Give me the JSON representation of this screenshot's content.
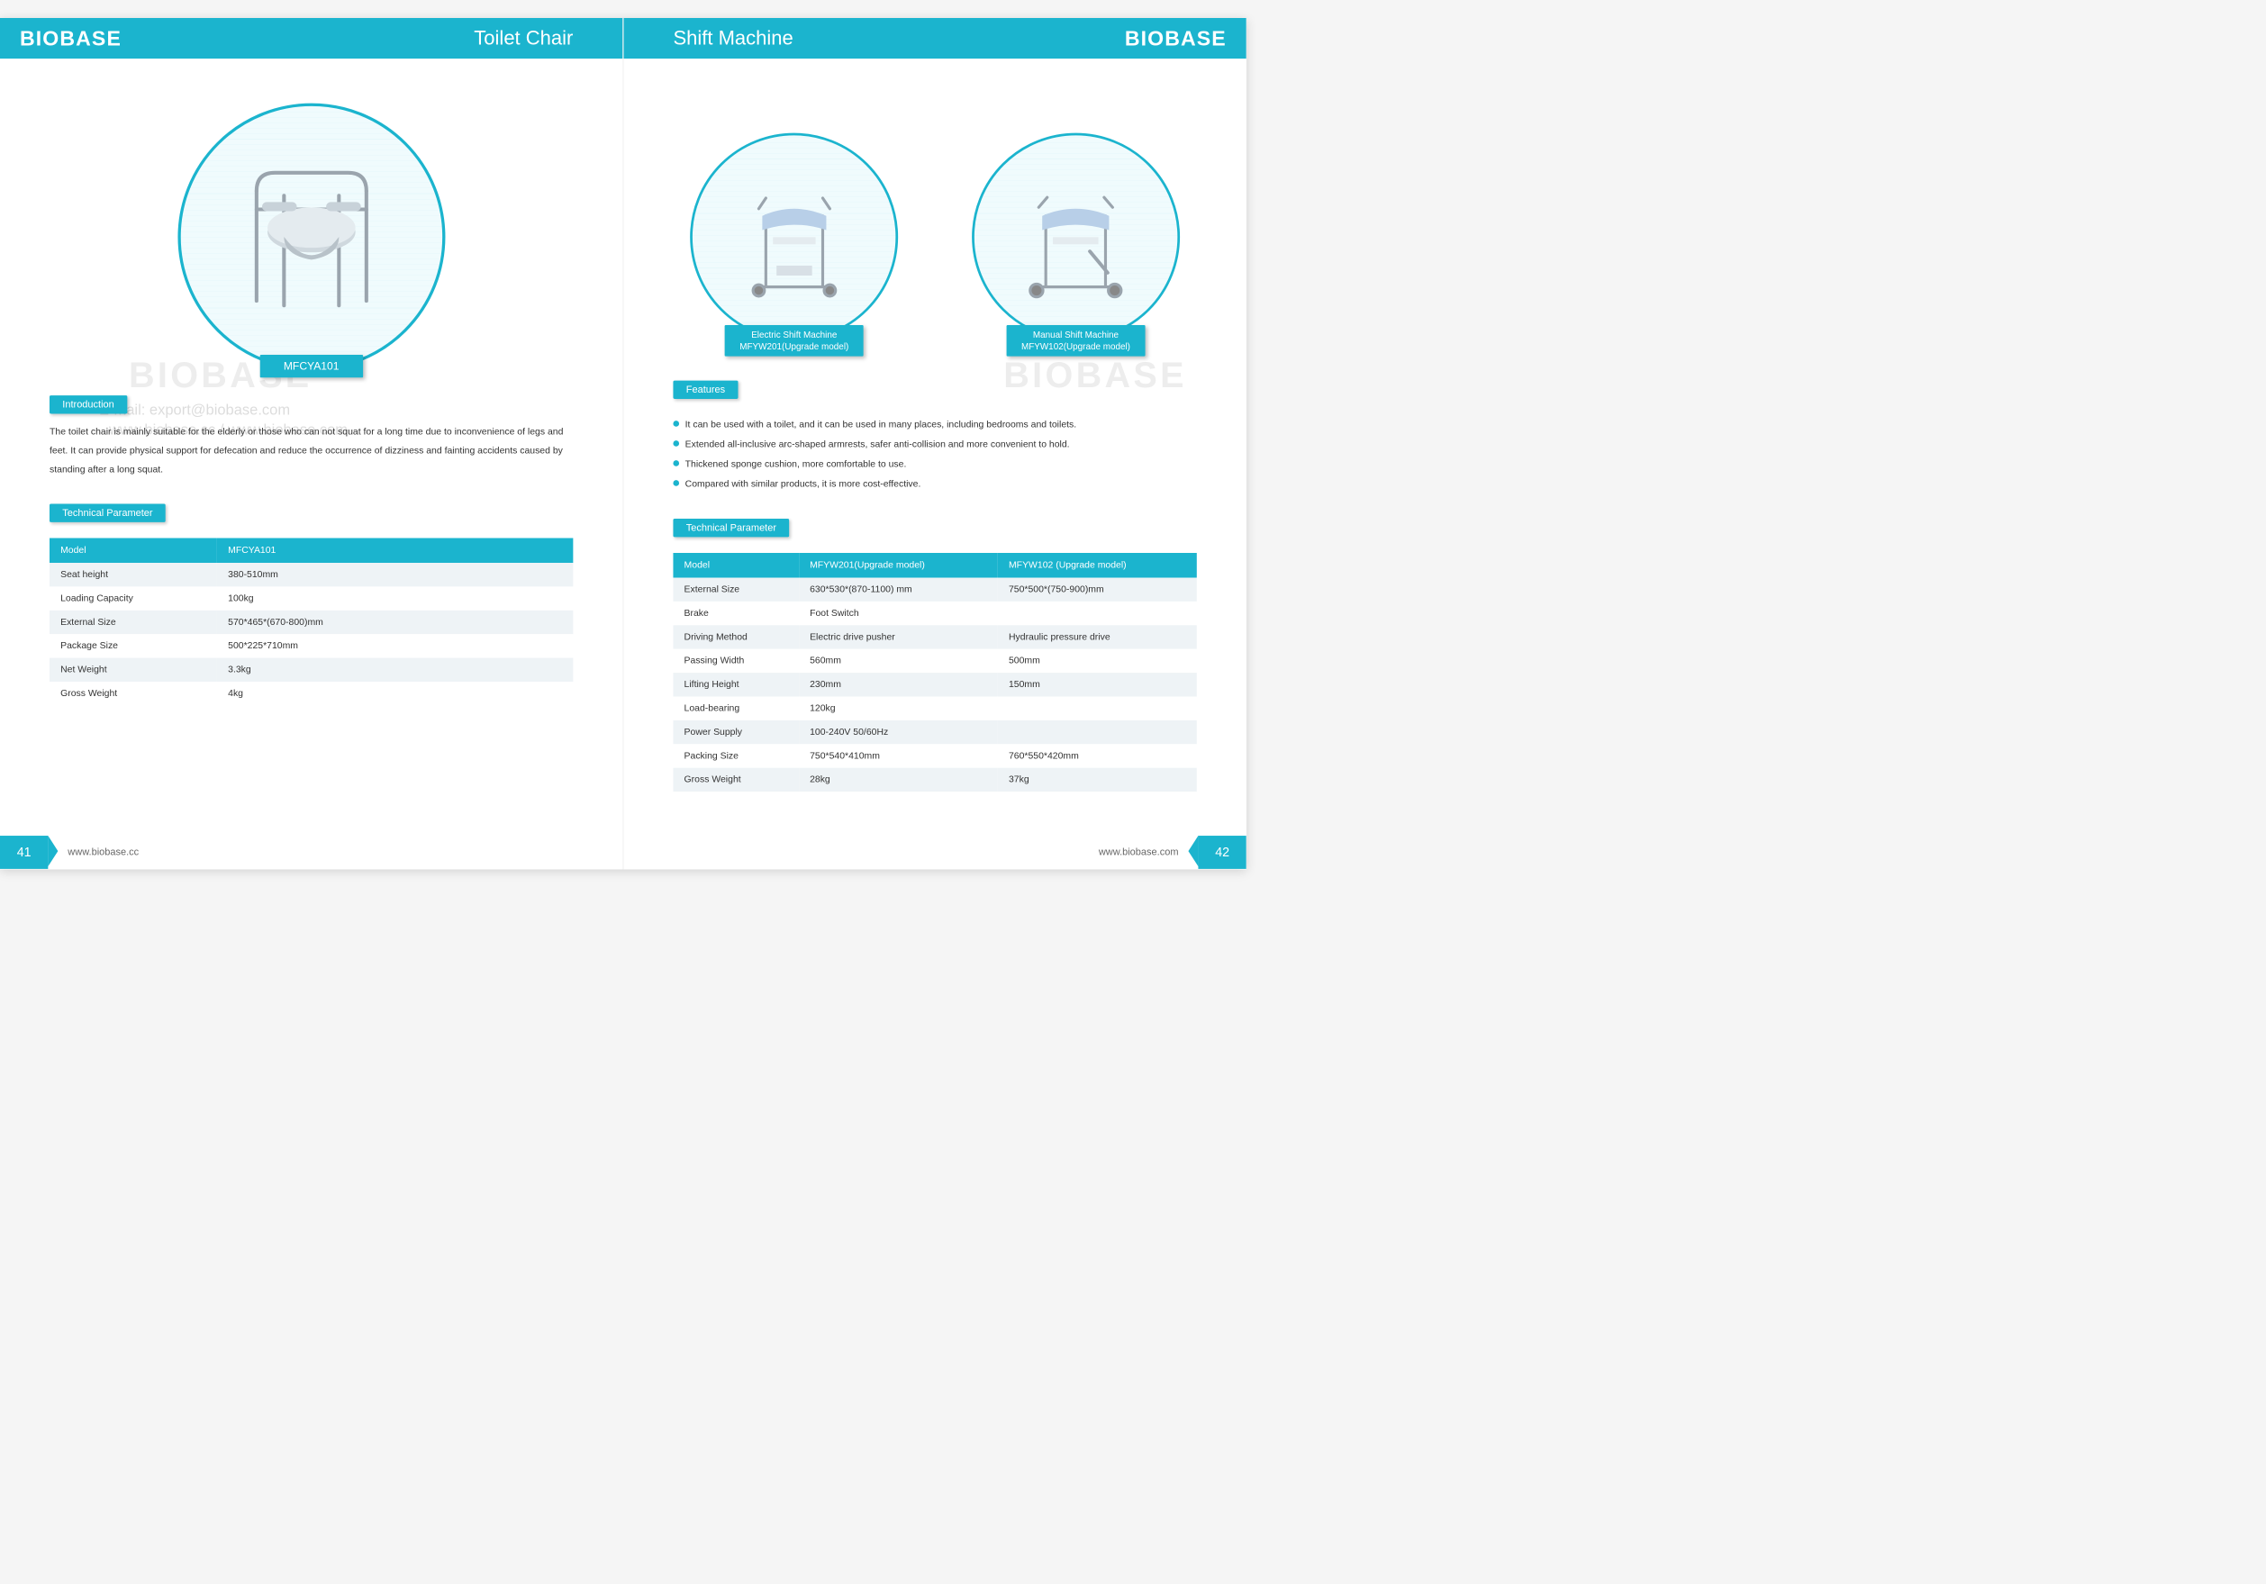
{
  "brand": "BIOBASE",
  "watermark": "BIOBASE",
  "watermark_email": "E-mail: export@biobase.com",
  "watermark_sites": "www.biobase.cc / www.biobase.com",
  "colors": {
    "accent": "#1bb4ce",
    "row_alt": "#eef3f6",
    "text": "#333333"
  },
  "left": {
    "header_title": "Toilet Chair",
    "product_model": "MFCYA101",
    "sections": {
      "intro_label": "Introduction",
      "intro_text": "The toilet chair is mainly suitable for the elderly or those who can not squat for a long time due to inconvenience of legs and feet. It can provide physical support for defecation and reduce the occurrence of dizziness and fainting accidents caused by standing after a long squat.",
      "tech_label": "Technical Parameter"
    },
    "table": {
      "columns": [
        "Model",
        "MFCYA101"
      ],
      "rows": [
        [
          "Seat height",
          "380-510mm"
        ],
        [
          "Loading Capacity",
          "100kg"
        ],
        [
          "External Size",
          "570*465*(670-800)mm"
        ],
        [
          "Package Size",
          "500*225*710mm"
        ],
        [
          "Net Weight",
          "3.3kg"
        ],
        [
          "Gross Weight",
          "4kg"
        ]
      ]
    },
    "footer": {
      "page": "41",
      "url": "www.biobase.cc"
    }
  },
  "right": {
    "header_title": "Shift Machine",
    "products": [
      {
        "line1": "Electric Shift Machine",
        "line2": "MFYW201(Upgrade model)"
      },
      {
        "line1": "Manual Shift Machine",
        "line2": "MFYW102(Upgrade model)"
      }
    ],
    "sections": {
      "features_label": "Features",
      "tech_label": "Technical Parameter"
    },
    "features": [
      "It can be used with a toilet, and it can be used in many places, including bedrooms and toilets.",
      "Extended all-inclusive arc-shaped armrests, safer anti-collision and more convenient to hold.",
      "Thickened sponge cushion, more comfortable to use.",
      "Compared with similar products, it is more cost-effective."
    ],
    "table": {
      "columns": [
        "Model",
        "MFYW201(Upgrade model)",
        "MFYW102 (Upgrade model)"
      ],
      "rows": [
        [
          "External Size",
          "630*530*(870-1100) mm",
          "750*500*(750-900)mm"
        ],
        [
          "Brake",
          "Foot Switch",
          ""
        ],
        [
          "Driving Method",
          "Electric drive pusher",
          "Hydraulic pressure drive"
        ],
        [
          "Passing Width",
          "560mm",
          "500mm"
        ],
        [
          "Lifting Height",
          "230mm",
          "150mm"
        ],
        [
          "Load-bearing",
          "120kg",
          ""
        ],
        [
          "Power Supply",
          "100-240V 50/60Hz",
          ""
        ],
        [
          "Packing Size",
          "750*540*410mm",
          "760*550*420mm"
        ],
        [
          "Gross Weight",
          "28kg",
          "37kg"
        ]
      ]
    },
    "footer": {
      "page": "42",
      "url": "www.biobase.com"
    }
  }
}
